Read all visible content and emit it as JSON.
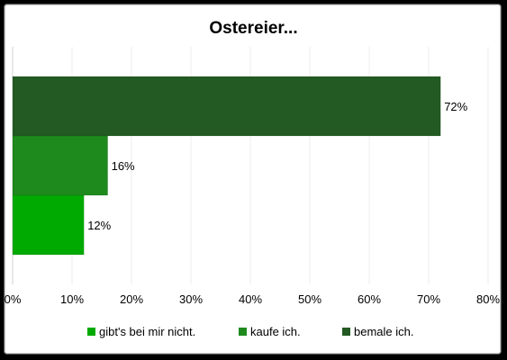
{
  "chart_data": {
    "type": "bar",
    "orientation": "horizontal",
    "title": "Ostereier...",
    "xlabel": "",
    "ylabel": "",
    "xlim": [
      0,
      80
    ],
    "x_ticks": [
      "0%",
      "10%",
      "20%",
      "30%",
      "40%",
      "50%",
      "60%",
      "70%",
      "80%"
    ],
    "grid": true,
    "legend_position": "bottom",
    "series": [
      {
        "name": "gibt's bei mir nicht.",
        "value": 12,
        "label": "12%",
        "color": "#00aa00"
      },
      {
        "name": "kaufe ich.",
        "value": 16,
        "label": "16%",
        "color": "#1e8a1e"
      },
      {
        "name": "bemale ich.",
        "value": 72,
        "label": "72%",
        "color": "#235a23"
      }
    ]
  }
}
